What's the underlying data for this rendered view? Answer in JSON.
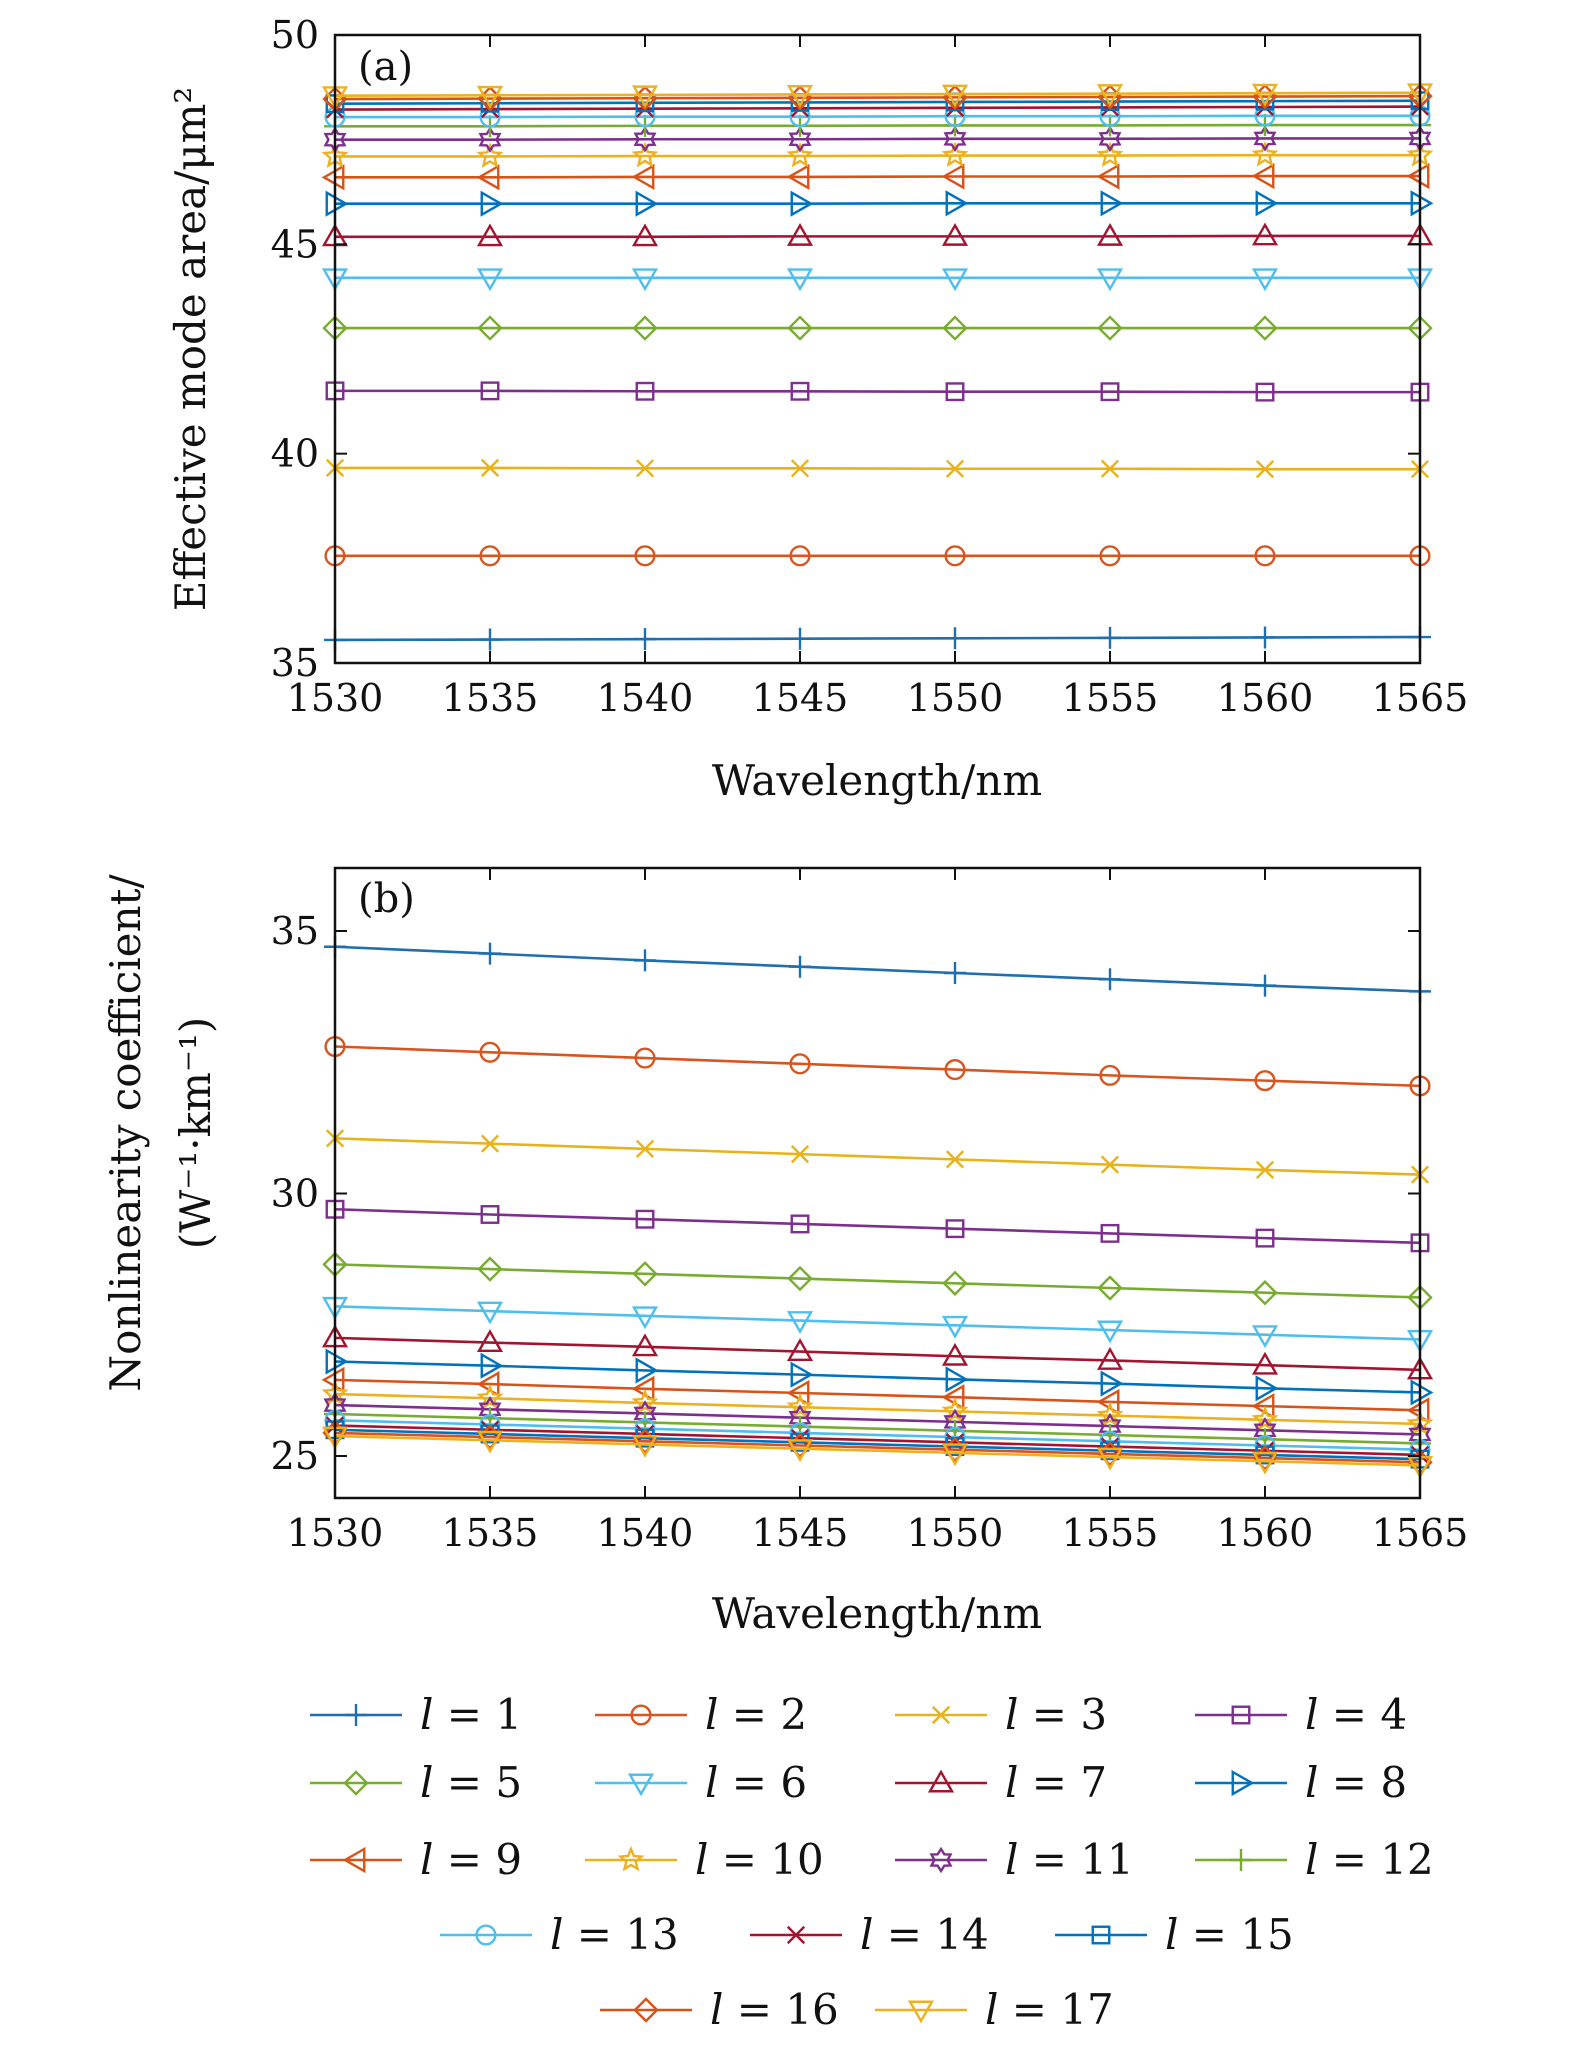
{
  "chart_data": [
    {
      "type": "line",
      "panel_label": "(a)",
      "xlabel": "Wavelength/nm",
      "ylabel": "Effective mode area/μm²",
      "xlim": [
        1530,
        1565
      ],
      "ylim": [
        35,
        50
      ],
      "xticks": [
        "1530",
        "1535",
        "1540",
        "1545",
        "1550",
        "1555",
        "1560",
        "1565"
      ],
      "yticks": [
        "35",
        "40",
        "45",
        "50"
      ],
      "x": [
        1530,
        1535,
        1540,
        1545,
        1550,
        1555,
        1560,
        1565
      ],
      "series": [
        {
          "name": "l = 1",
          "values": [
            35.55,
            35.56,
            35.57,
            35.58,
            35.59,
            35.6,
            35.61,
            35.62
          ]
        },
        {
          "name": "l = 2",
          "values": [
            37.56,
            37.56,
            37.56,
            37.56,
            37.56,
            37.56,
            37.56,
            37.56
          ]
        },
        {
          "name": "l = 3",
          "values": [
            39.66,
            39.66,
            39.65,
            39.65,
            39.64,
            39.64,
            39.63,
            39.63
          ]
        },
        {
          "name": "l = 4",
          "values": [
            41.5,
            41.5,
            41.49,
            41.49,
            41.48,
            41.48,
            41.47,
            41.47
          ]
        },
        {
          "name": "l = 5",
          "values": [
            43.0,
            43.0,
            43.0,
            43.0,
            43.0,
            43.0,
            43.0,
            43.0
          ]
        },
        {
          "name": "l = 6",
          "values": [
            44.2,
            44.2,
            44.2,
            44.2,
            44.2,
            44.2,
            44.2,
            44.2
          ]
        },
        {
          "name": "l = 7",
          "values": [
            45.18,
            45.18,
            45.18,
            45.19,
            45.19,
            45.19,
            45.2,
            45.2
          ]
        },
        {
          "name": "l = 8",
          "values": [
            45.97,
            45.97,
            45.97,
            45.97,
            45.98,
            45.98,
            45.98,
            45.98
          ]
        },
        {
          "name": "l = 9",
          "values": [
            46.6,
            46.6,
            46.61,
            46.61,
            46.62,
            46.62,
            46.63,
            46.63
          ]
        },
        {
          "name": "l = 10",
          "values": [
            47.1,
            47.1,
            47.11,
            47.11,
            47.12,
            47.12,
            47.13,
            47.13
          ]
        },
        {
          "name": "l = 11",
          "values": [
            47.5,
            47.5,
            47.51,
            47.51,
            47.52,
            47.52,
            47.53,
            47.53
          ]
        },
        {
          "name": "l = 12",
          "values": [
            47.82,
            47.82,
            47.83,
            47.83,
            47.84,
            47.84,
            47.85,
            47.85
          ]
        },
        {
          "name": "l = 13",
          "values": [
            48.04,
            48.04,
            48.05,
            48.05,
            48.06,
            48.06,
            48.07,
            48.07
          ]
        },
        {
          "name": "l = 14",
          "values": [
            48.22,
            48.23,
            48.24,
            48.25,
            48.26,
            48.27,
            48.28,
            48.29
          ]
        },
        {
          "name": "l = 15",
          "values": [
            48.36,
            48.37,
            48.38,
            48.39,
            48.4,
            48.41,
            48.42,
            48.43
          ]
        },
        {
          "name": "l = 16",
          "values": [
            48.47,
            48.48,
            48.49,
            48.5,
            48.51,
            48.52,
            48.53,
            48.54
          ]
        },
        {
          "name": "l = 17",
          "values": [
            48.55,
            48.56,
            48.57,
            48.58,
            48.59,
            48.6,
            48.61,
            48.62
          ]
        }
      ]
    },
    {
      "type": "line",
      "panel_label": "(b)",
      "xlabel": "Wavelength/nm",
      "ylabel_line1": "Nonlinearity coefficient/",
      "ylabel_line2": "(W⁻¹·km⁻¹)",
      "xlim": [
        1530,
        1565
      ],
      "ylim": [
        24.2,
        36.2
      ],
      "xticks": [
        "1530",
        "1535",
        "1540",
        "1545",
        "1550",
        "1555",
        "1560",
        "1565"
      ],
      "yticks": [
        "25",
        "30",
        "35"
      ],
      "x": [
        1530,
        1535,
        1540,
        1545,
        1550,
        1555,
        1560,
        1565
      ],
      "series": [
        {
          "name": "l = 1",
          "values": [
            34.7,
            34.57,
            34.44,
            34.32,
            34.2,
            34.08,
            33.96,
            33.85
          ]
        },
        {
          "name": "l = 2",
          "values": [
            32.8,
            32.69,
            32.58,
            32.47,
            32.36,
            32.25,
            32.15,
            32.05
          ]
        },
        {
          "name": "l = 3",
          "values": [
            31.05,
            30.95,
            30.85,
            30.75,
            30.65,
            30.55,
            30.45,
            30.36
          ]
        },
        {
          "name": "l = 4",
          "values": [
            29.7,
            29.6,
            29.51,
            29.42,
            29.33,
            29.24,
            29.15,
            29.06
          ]
        },
        {
          "name": "l = 5",
          "values": [
            28.65,
            28.56,
            28.47,
            28.38,
            28.29,
            28.2,
            28.11,
            28.02
          ]
        },
        {
          "name": "l = 6",
          "values": [
            27.85,
            27.76,
            27.67,
            27.58,
            27.49,
            27.4,
            27.31,
            27.22
          ]
        },
        {
          "name": "l = 7",
          "values": [
            27.25,
            27.16,
            27.08,
            26.99,
            26.9,
            26.82,
            26.73,
            26.64
          ]
        },
        {
          "name": "l = 8",
          "values": [
            26.8,
            26.72,
            26.63,
            26.55,
            26.46,
            26.38,
            26.29,
            26.21
          ]
        },
        {
          "name": "l = 9",
          "values": [
            26.45,
            26.37,
            26.28,
            26.2,
            26.12,
            26.03,
            25.95,
            25.87
          ]
        },
        {
          "name": "l = 10",
          "values": [
            26.18,
            26.1,
            26.01,
            25.93,
            25.85,
            25.77,
            25.69,
            25.61
          ]
        },
        {
          "name": "l = 11",
          "values": [
            25.97,
            25.89,
            25.81,
            25.73,
            25.65,
            25.57,
            25.49,
            25.41
          ]
        },
        {
          "name": "l = 12",
          "values": [
            25.8,
            25.72,
            25.64,
            25.56,
            25.48,
            25.4,
            25.32,
            25.24
          ]
        },
        {
          "name": "l = 13",
          "values": [
            25.68,
            25.6,
            25.52,
            25.44,
            25.36,
            25.28,
            25.2,
            25.12
          ]
        },
        {
          "name": "l = 14",
          "values": [
            25.58,
            25.5,
            25.42,
            25.34,
            25.26,
            25.18,
            25.1,
            25.02
          ]
        },
        {
          "name": "l = 15",
          "values": [
            25.5,
            25.42,
            25.34,
            25.26,
            25.18,
            25.1,
            25.02,
            24.94
          ]
        },
        {
          "name": "l = 16",
          "values": [
            25.44,
            25.36,
            25.28,
            25.2,
            25.12,
            25.04,
            24.96,
            24.88
          ]
        },
        {
          "name": "l = 17",
          "values": [
            25.38,
            25.3,
            25.22,
            25.14,
            25.06,
            24.98,
            24.9,
            24.82
          ]
        }
      ]
    }
  ],
  "legend": {
    "entries": [
      {
        "prefix": "l",
        "rest": " = 1"
      },
      {
        "prefix": "l",
        "rest": " = 2"
      },
      {
        "prefix": "l",
        "rest": " = 3"
      },
      {
        "prefix": "l",
        "rest": " = 4"
      },
      {
        "prefix": "l",
        "rest": " = 5"
      },
      {
        "prefix": "l",
        "rest": " = 6"
      },
      {
        "prefix": "l",
        "rest": " = 7"
      },
      {
        "prefix": "l",
        "rest": " = 8"
      },
      {
        "prefix": "l",
        "rest": " = 9"
      },
      {
        "prefix": "l",
        "rest": " = 10"
      },
      {
        "prefix": "l",
        "rest": " = 11"
      },
      {
        "prefix": "l",
        "rest": " = 12"
      },
      {
        "prefix": "l",
        "rest": " = 13"
      },
      {
        "prefix": "l",
        "rest": " = 14"
      },
      {
        "prefix": "l",
        "rest": " = 15"
      },
      {
        "prefix": "l",
        "rest": " = 16"
      },
      {
        "prefix": "l",
        "rest": " = 17"
      }
    ]
  },
  "series_style": [
    {
      "color": "#1f6fb0",
      "marker": "plus"
    },
    {
      "color": "#d9541e",
      "marker": "circle"
    },
    {
      "color": "#e8b21a",
      "marker": "x"
    },
    {
      "color": "#7e2f8e",
      "marker": "square"
    },
    {
      "color": "#77ac30",
      "marker": "diamond"
    },
    {
      "color": "#4dbeee",
      "marker": "triangle-down"
    },
    {
      "color": "#a2142f",
      "marker": "triangle-up"
    },
    {
      "color": "#0072bd",
      "marker": "triangle-right"
    },
    {
      "color": "#d95319",
      "marker": "triangle-left"
    },
    {
      "color": "#edb120",
      "marker": "star"
    },
    {
      "color": "#7e2f8e",
      "marker": "hexagram"
    },
    {
      "color": "#77ac30",
      "marker": "plus"
    },
    {
      "color": "#4dbeee",
      "marker": "circle"
    },
    {
      "color": "#a2142f",
      "marker": "x"
    },
    {
      "color": "#0072bd",
      "marker": "square"
    },
    {
      "color": "#d95319",
      "marker": "diamond"
    },
    {
      "color": "#edb120",
      "marker": "triangle-down"
    }
  ]
}
